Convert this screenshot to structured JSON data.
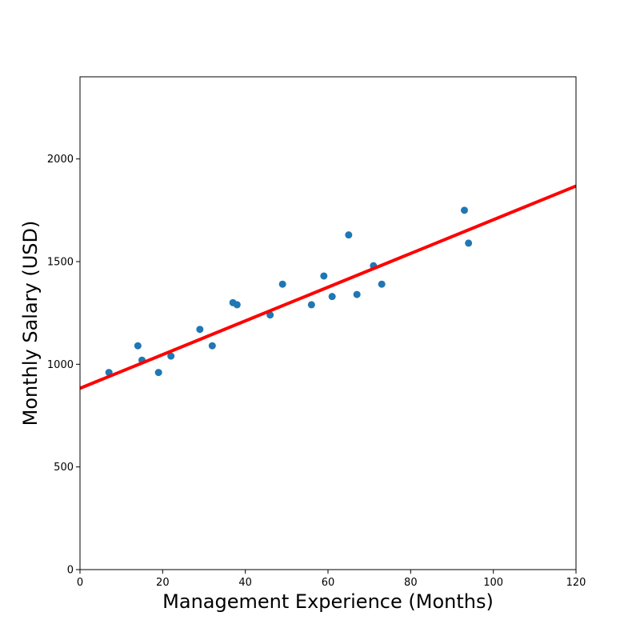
{
  "chart_data": {
    "type": "scatter",
    "title": "",
    "xlabel": "Management Experience (Months)",
    "ylabel": "Monthly Salary (USD)",
    "xlim": [
      0,
      120
    ],
    "ylim": [
      0,
      2400
    ],
    "x_ticks": [
      0,
      20,
      40,
      60,
      80,
      100,
      120
    ],
    "y_ticks": [
      0,
      500,
      1000,
      1500,
      2000
    ],
    "grid": false,
    "legend": "none",
    "series": [
      {
        "type": "scatter",
        "color": "#1f77b4",
        "points": [
          {
            "x": 7,
            "y": 960
          },
          {
            "x": 14,
            "y": 1090
          },
          {
            "x": 15,
            "y": 1020
          },
          {
            "x": 19,
            "y": 960
          },
          {
            "x": 22,
            "y": 1040
          },
          {
            "x": 29,
            "y": 1170
          },
          {
            "x": 32,
            "y": 1090
          },
          {
            "x": 37,
            "y": 1300
          },
          {
            "x": 38,
            "y": 1290
          },
          {
            "x": 46,
            "y": 1240
          },
          {
            "x": 49,
            "y": 1390
          },
          {
            "x": 56,
            "y": 1290
          },
          {
            "x": 59,
            "y": 1430
          },
          {
            "x": 61,
            "y": 1330
          },
          {
            "x": 65,
            "y": 1630
          },
          {
            "x": 67,
            "y": 1340
          },
          {
            "x": 71,
            "y": 1480
          },
          {
            "x": 73,
            "y": 1390
          },
          {
            "x": 93,
            "y": 1750
          },
          {
            "x": 94,
            "y": 1590
          }
        ]
      },
      {
        "type": "line",
        "color": "#ff0000",
        "points": [
          {
            "x": 0,
            "y": 883
          },
          {
            "x": 120,
            "y": 1868
          }
        ]
      }
    ]
  }
}
